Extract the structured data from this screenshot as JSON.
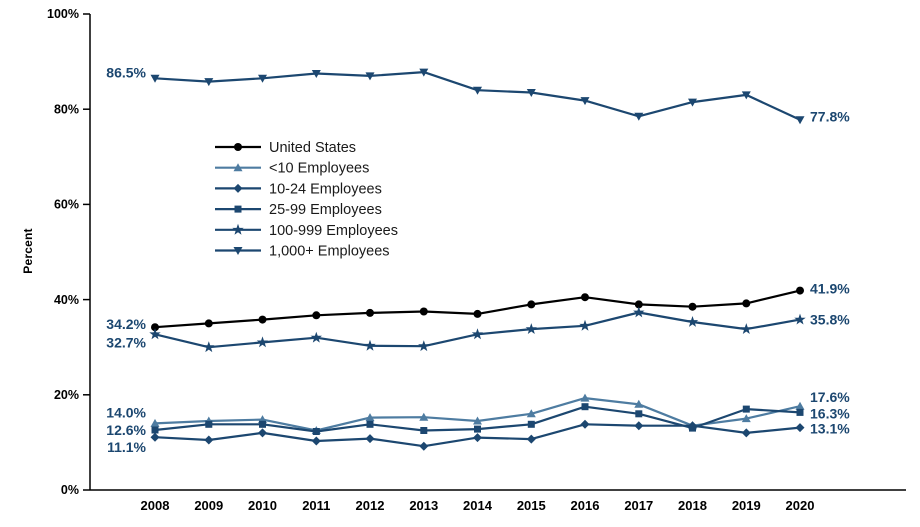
{
  "chart_data": {
    "type": "line",
    "title": "",
    "xlabel": "",
    "ylabel": "Percent",
    "ylim": [
      0,
      100
    ],
    "yticks": [
      0,
      20,
      40,
      60,
      80,
      100
    ],
    "ytick_labels": [
      "0%",
      "20%",
      "40%",
      "60%",
      "80%",
      "100%"
    ],
    "grid": false,
    "legend_position": "upper-left-inside",
    "label_color": "#1c4770",
    "categories": [
      "2008",
      "2009",
      "2010",
      "2011",
      "2012",
      "2013",
      "2014",
      "2015",
      "2016",
      "2017",
      "2018",
      "2019",
      "2020"
    ],
    "series": [
      {
        "name": "United States",
        "marker": "circle",
        "color": "#000000",
        "values": [
          34.2,
          35.0,
          35.8,
          36.7,
          37.2,
          37.5,
          37.0,
          39.0,
          40.5,
          39.0,
          38.5,
          39.2,
          41.9
        ],
        "start_label": "34.2%",
        "end_label": "41.9%",
        "start_dy": -3,
        "end_dy": -2
      },
      {
        "name": "<10 Employees",
        "marker": "triangle-up",
        "color": "#4e7ca1",
        "values": [
          14.0,
          14.5,
          14.8,
          12.5,
          15.2,
          15.3,
          14.5,
          16.0,
          19.3,
          18.0,
          13.5,
          15.0,
          17.6
        ],
        "start_label": "14.0%",
        "end_label": "17.6%",
        "start_dy": -11,
        "end_dy": -9
      },
      {
        "name": "10-24 Employees",
        "marker": "diamond",
        "color": "#1c4770",
        "values": [
          11.1,
          10.5,
          12.0,
          10.3,
          10.8,
          9.2,
          11.0,
          10.7,
          13.8,
          13.5,
          13.5,
          12.0,
          13.1
        ],
        "start_label": "11.1%",
        "end_label": "13.1%",
        "start_dy": 10,
        "end_dy": 1
      },
      {
        "name": "25-99 Employees",
        "marker": "square",
        "color": "#1c4770",
        "values": [
          12.6,
          13.8,
          13.8,
          12.3,
          13.8,
          12.5,
          12.8,
          13.8,
          17.5,
          16.0,
          13.0,
          17.0,
          16.3
        ],
        "start_label": "12.6%",
        "end_label": "16.3%",
        "start_dy": 0,
        "end_dy": 1
      },
      {
        "name": "100-999 Employees",
        "marker": "star",
        "color": "#1c4770",
        "values": [
          32.7,
          30.0,
          31.0,
          32.0,
          30.3,
          30.2,
          32.7,
          33.8,
          34.5,
          37.3,
          35.3,
          33.8,
          35.8
        ],
        "start_label": "32.7%",
        "end_label": "35.8%",
        "start_dy": 8,
        "end_dy": 0
      },
      {
        "name": "1,000+ Employees",
        "marker": "triangle-down",
        "color": "#1c4770",
        "values": [
          86.5,
          85.8,
          86.5,
          87.5,
          87.0,
          87.8,
          84.0,
          83.5,
          81.8,
          78.5,
          81.5,
          83.0,
          77.8
        ],
        "start_label": "86.5%",
        "end_label": "77.8%",
        "start_dy": -6,
        "end_dy": -3
      }
    ]
  }
}
